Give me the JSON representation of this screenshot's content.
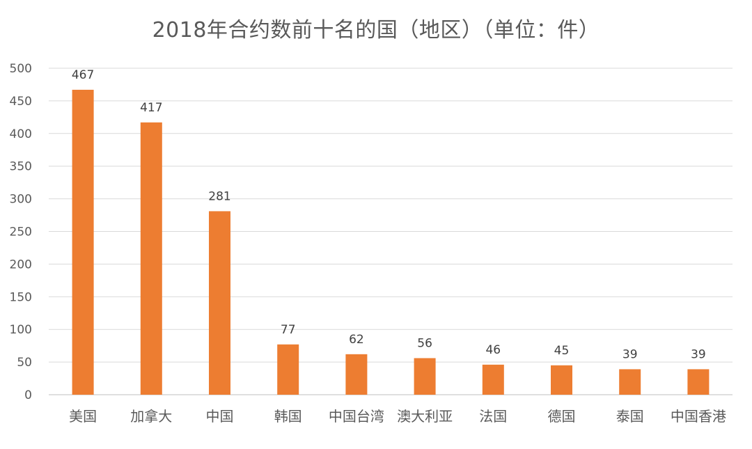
{
  "chart_data": {
    "type": "bar",
    "title": "2018年合约数前十名的国（地区）（单位：件）",
    "categories": [
      "美国",
      "加拿大",
      "中国",
      "韩国",
      "中国台湾",
      "澳大利亚",
      "法国",
      "德国",
      "泰国",
      "中国香港"
    ],
    "values": [
      467,
      417,
      281,
      77,
      62,
      56,
      46,
      45,
      39,
      39
    ],
    "xlabel": "",
    "ylabel": "",
    "ylim": [
      0,
      500
    ],
    "yticks": [
      0,
      50,
      100,
      150,
      200,
      250,
      300,
      350,
      400,
      450,
      500
    ],
    "grid": true,
    "legend": "none",
    "data_labels": true,
    "colors": {
      "bar": "#ED7D31",
      "grid": "#D9D9D9",
      "text": "#595959"
    }
  }
}
